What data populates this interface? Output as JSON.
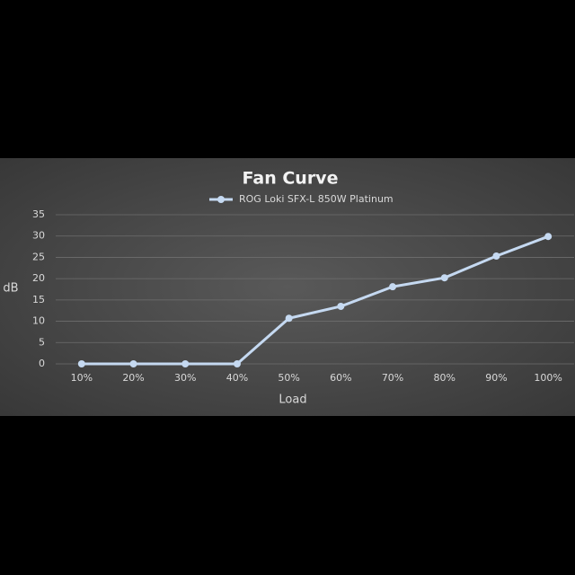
{
  "chart_data": {
    "type": "line",
    "title": "Fan Curve",
    "categories": [
      "10%",
      "20%",
      "30%",
      "40%",
      "50%",
      "60%",
      "70%",
      "80%",
      "90%",
      "100%"
    ],
    "series": [
      {
        "name": "ROG Loki SFX-L 850W Platinum",
        "color": "#c5d9f1",
        "values": [
          0,
          0,
          0,
          0,
          10.7,
          13.5,
          18.1,
          20.2,
          25.3,
          29.9
        ]
      }
    ],
    "ylim": [
      0,
      35
    ],
    "yticks": [
      0,
      5,
      10,
      15,
      20,
      25,
      30,
      35
    ],
    "xlabel": "Load",
    "ylabel": "dB",
    "grid": true,
    "legend": "top"
  }
}
